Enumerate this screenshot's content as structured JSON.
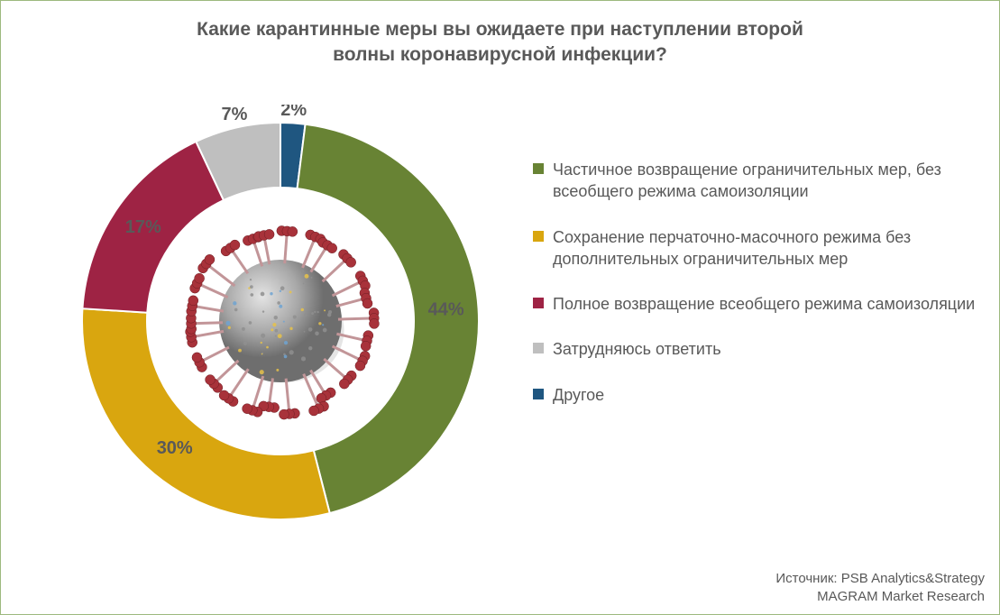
{
  "title_line1": "Какие карантинные меры вы ожидаете при наступлении второй",
  "title_line2": "волны коронавирусной инфекции?",
  "title_fontsize": 21,
  "title_color": "#595959",
  "chart": {
    "type": "donut",
    "start_angle_deg": -90,
    "outer_radius": 220,
    "inner_radius": 148,
    "background_color": "#ffffff",
    "label_fontsize": 20,
    "label_fontweight": "bold",
    "label_color": "#595959",
    "slices": [
      {
        "label_pct": "2%",
        "value": 2,
        "color": "#1f5680"
      },
      {
        "label_pct": "44%",
        "value": 44,
        "color": "#688334"
      },
      {
        "label_pct": "30%",
        "value": 30,
        "color": "#d9a60f"
      },
      {
        "label_pct": "17%",
        "value": 17,
        "color": "#9e2344"
      },
      {
        "label_pct": "7%",
        "value": 7,
        "color": "#bfbfbf"
      }
    ]
  },
  "legend": {
    "fontsize": 18,
    "color": "#595959",
    "swatch_size": 12,
    "items": [
      {
        "color": "#688334",
        "label": "Частичное возвращение ограничительных мер, без всеобщего режима самоизоляции"
      },
      {
        "color": "#d9a60f",
        "label": "Сохранение перчаточно-масочного режима без дополнительных ограничительных мер"
      },
      {
        "color": "#9e2344",
        "label": "Полное возвращение всеобщего режима самоизоляции"
      },
      {
        "color": "#bfbfbf",
        "label": "Затрудняюсь ответить"
      },
      {
        "color": "#1f5680",
        "label": "Другое"
      }
    ]
  },
  "source": {
    "line1": "Источник: PSB Analytics&Strategy",
    "line2": "MAGRAM Market Research",
    "fontsize": 15,
    "color": "#595959"
  },
  "center_image": {
    "name": "coronavirus-illustration",
    "body_color": "#a7a7a7",
    "spike_color": "#a8323a",
    "dot_color_a": "#e6c24a",
    "dot_color_b": "#6fa3d1"
  },
  "border_color": "#9db97e"
}
